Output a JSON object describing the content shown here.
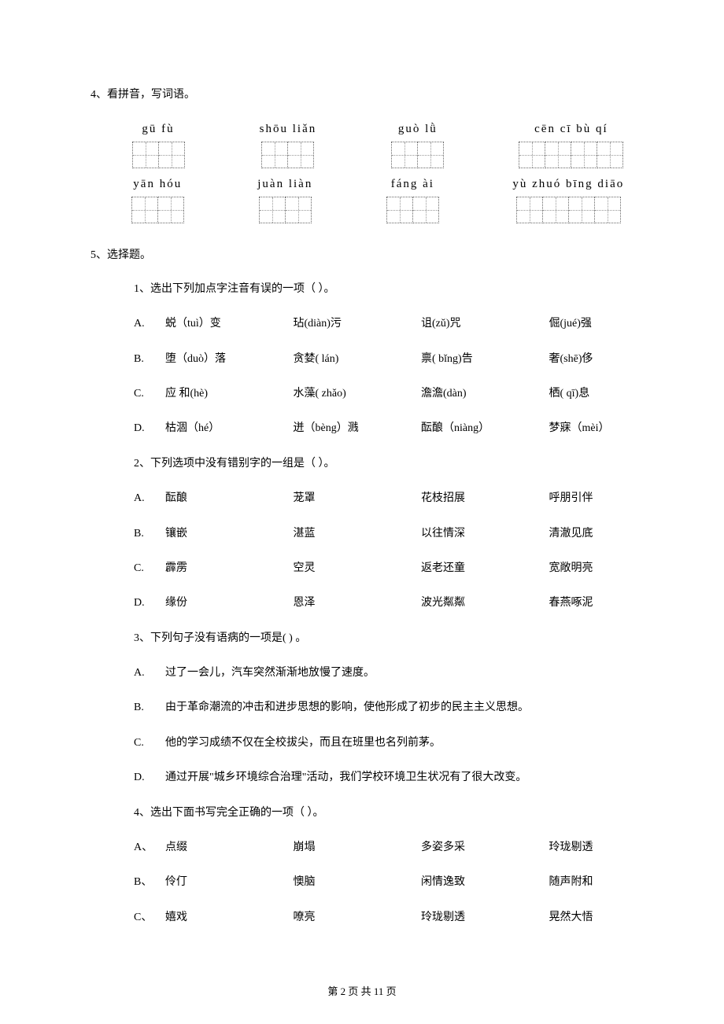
{
  "q4": {
    "title": "4、看拼音，写词语。",
    "row1": [
      {
        "pinyin": "gū   fù",
        "cells": 2
      },
      {
        "pinyin": "shōu liǎn",
        "cells": 2
      },
      {
        "pinyin": "guò   lǜ",
        "cells": 2
      },
      {
        "pinyin": "cēn  cī  bù  qí",
        "cells": 4
      }
    ],
    "row2": [
      {
        "pinyin": "yān  hóu",
        "cells": 2
      },
      {
        "pinyin": "juàn liàn",
        "cells": 2
      },
      {
        "pinyin": "fáng ài",
        "cells": 2
      },
      {
        "pinyin": "yù zhuó bīng diāo",
        "cells": 4
      }
    ]
  },
  "q5": {
    "title": "5、选择题。",
    "sub1": {
      "prompt": "1、选出下列加点字注音有误的一项（    ）。",
      "options": [
        {
          "label": "A.",
          "cells": [
            "蜕（tuì）变",
            "玷(diàn)污",
            "诅(zǔ)咒",
            "倔(jué)强"
          ]
        },
        {
          "label": "B.",
          "cells": [
            "堕（duò）落",
            "贪婪( lán)",
            "禀( bǐng)告",
            "奢(shē)侈"
          ]
        },
        {
          "label": "C.",
          "cells": [
            "应  和(hè)",
            "水藻( zhǎo)",
            "澹澹(dàn)",
            "栖( qī)息"
          ]
        },
        {
          "label": "D.",
          "cells": [
            "枯涸（hé）",
            "迸（bèng）溅",
            "酝酿（niàng）",
            "梦寐（mèi）"
          ]
        }
      ]
    },
    "sub2": {
      "prompt": "2、下列选项中没有错别字的一组是（    ）。",
      "options": [
        {
          "label": "A.",
          "cells": [
            "酝酿",
            "茏罩",
            "花枝招展",
            "呼朋引伴"
          ]
        },
        {
          "label": "B.",
          "cells": [
            "镶嵌",
            "湛蓝",
            "以往情深",
            "清澈见底"
          ]
        },
        {
          "label": "C.",
          "cells": [
            "霹雳",
            "空灵",
            "返老还童",
            "宽敞明亮"
          ]
        },
        {
          "label": "D.",
          "cells": [
            "缘份",
            "恩泽",
            "波光粼粼",
            "春燕啄泥"
          ]
        }
      ]
    },
    "sub3": {
      "prompt": "3、下列句子没有语病的一项是(        ) 。",
      "options": [
        {
          "label": "A.",
          "text": "过了一会儿，汽车突然渐渐地放慢了速度。"
        },
        {
          "label": "B.",
          "text": "由于革命潮流的冲击和进步思想的影响，使他形成了初步的民主主义思想。"
        },
        {
          "label": "C.",
          "text": "他的学习成绩不仅在全校拔尖，而且在班里也名列前茅。"
        },
        {
          "label": "D.",
          "text": "通过开展\"城乡环境综合治理\"活动，我们学校环境卫生状况有了很大改变。"
        }
      ]
    },
    "sub4": {
      "prompt": "4、选出下面书写完全正确的一项（        ）。",
      "options": [
        {
          "label": "A、",
          "cells": [
            "点缀",
            "崩塌",
            "多姿多采",
            "玲珑剔透"
          ]
        },
        {
          "label": "B、",
          "cells": [
            "伶仃",
            "懊脑",
            "闲情逸致",
            "随声附和"
          ]
        },
        {
          "label": "C、",
          "cells": [
            "嬉戏",
            "嘹亮",
            "玲珑剔透",
            "晃然大悟"
          ]
        }
      ]
    }
  },
  "footer": "第 2 页 共 11 页",
  "colors": {
    "text": "#000000",
    "background": "#ffffff",
    "grid_border": "#666666"
  },
  "typography": {
    "body_font": "SimSun",
    "body_size_pt": 10.5,
    "pinyin_font": "Times New Roman"
  }
}
